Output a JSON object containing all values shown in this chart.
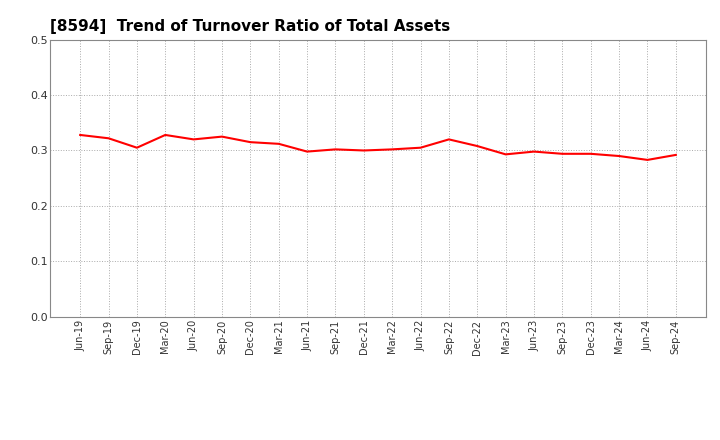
{
  "title": "[8594]  Trend of Turnover Ratio of Total Assets",
  "title_fontsize": 11,
  "line_color": "#FF0000",
  "line_width": 1.5,
  "background_color": "#FFFFFF",
  "grid_color": "#AAAAAA",
  "ylim": [
    0.0,
    0.5
  ],
  "yticks": [
    0.0,
    0.1,
    0.2,
    0.3,
    0.4,
    0.5
  ],
  "x_labels": [
    "Jun-19",
    "Sep-19",
    "Dec-19",
    "Mar-20",
    "Jun-20",
    "Sep-20",
    "Dec-20",
    "Mar-21",
    "Jun-21",
    "Sep-21",
    "Dec-21",
    "Mar-22",
    "Jun-22",
    "Sep-22",
    "Dec-22",
    "Mar-23",
    "Jun-23",
    "Sep-23",
    "Dec-23",
    "Mar-24",
    "Jun-24",
    "Sep-24"
  ],
  "values": [
    0.328,
    0.322,
    0.305,
    0.328,
    0.32,
    0.325,
    0.315,
    0.312,
    0.298,
    0.302,
    0.3,
    0.302,
    0.305,
    0.32,
    0.308,
    0.293,
    0.298,
    0.294,
    0.294,
    0.29,
    0.283,
    0.292
  ]
}
